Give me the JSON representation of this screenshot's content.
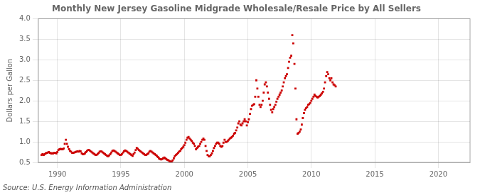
{
  "chart_data": {
    "type": "scatter",
    "title": "Monthly New Jersey Gasoline Midgrade Wholesale/Resale Price by All Sellers",
    "ylabel": "Dollars per Gallon",
    "annotation": "Source: U.S. Energy Information Administration",
    "color": "#cc0000",
    "marker": "square",
    "grid": true,
    "xlim": [
      1988.5,
      2022.5
    ],
    "ylim": [
      0.5,
      4.0
    ],
    "xticks": [
      1990,
      1995,
      2000,
      2005,
      2010,
      2015,
      2020
    ],
    "yticks": [
      0.5,
      {
        "value": 1.0,
        "label": "1.0"
      },
      1.5,
      {
        "value": 2.0,
        "label": "2.0"
      },
      2.5,
      {
        "value": 3.0,
        "label": "3.0"
      },
      3.5,
      {
        "value": 4.0,
        "label": "4.0"
      }
    ],
    "x": [
      1988.75,
      1988.83,
      1988.92,
      1989.0,
      1989.08,
      1989.17,
      1989.25,
      1989.33,
      1989.42,
      1989.5,
      1989.58,
      1989.67,
      1989.75,
      1989.83,
      1989.92,
      1990.0,
      1990.08,
      1990.17,
      1990.25,
      1990.33,
      1990.42,
      1990.5,
      1990.58,
      1990.67,
      1990.75,
      1990.83,
      1990.92,
      1991.0,
      1991.08,
      1991.17,
      1991.25,
      1991.33,
      1991.42,
      1991.5,
      1991.58,
      1991.67,
      1991.75,
      1991.83,
      1991.92,
      1992.0,
      1992.08,
      1992.17,
      1992.25,
      1992.33,
      1992.42,
      1992.5,
      1992.58,
      1992.67,
      1992.75,
      1992.83,
      1992.92,
      1993.0,
      1993.08,
      1993.17,
      1993.25,
      1993.33,
      1993.42,
      1993.5,
      1993.58,
      1993.67,
      1993.75,
      1993.83,
      1993.92,
      1994.0,
      1994.08,
      1994.17,
      1994.25,
      1994.33,
      1994.42,
      1994.5,
      1994.58,
      1994.67,
      1994.75,
      1994.83,
      1994.92,
      1995.0,
      1995.08,
      1995.17,
      1995.25,
      1995.33,
      1995.42,
      1995.5,
      1995.58,
      1995.67,
      1995.75,
      1995.83,
      1995.92,
      1996.0,
      1996.08,
      1996.17,
      1996.25,
      1996.33,
      1996.42,
      1996.5,
      1996.58,
      1996.67,
      1996.75,
      1996.83,
      1996.92,
      1997.0,
      1997.08,
      1997.17,
      1997.25,
      1997.33,
      1997.42,
      1997.5,
      1997.58,
      1997.67,
      1997.75,
      1997.83,
      1997.92,
      1998.0,
      1998.08,
      1998.17,
      1998.25,
      1998.33,
      1998.42,
      1998.5,
      1998.58,
      1998.67,
      1998.75,
      1998.83,
      1998.92,
      1999.0,
      1999.08,
      1999.17,
      1999.25,
      1999.33,
      1999.42,
      1999.5,
      1999.58,
      1999.67,
      1999.75,
      1999.83,
      1999.92,
      2000.0,
      2000.08,
      2000.17,
      2000.25,
      2000.33,
      2000.42,
      2000.5,
      2000.58,
      2000.67,
      2000.75,
      2000.83,
      2000.92,
      2001.0,
      2001.08,
      2001.17,
      2001.25,
      2001.33,
      2001.42,
      2001.5,
      2001.58,
      2001.67,
      2001.75,
      2001.83,
      2001.92,
      2002.0,
      2002.08,
      2002.17,
      2002.25,
      2002.33,
      2002.42,
      2002.5,
      2002.58,
      2002.67,
      2002.75,
      2002.83,
      2002.92,
      2003.0,
      2003.08,
      2003.17,
      2003.25,
      2003.33,
      2003.42,
      2003.5,
      2003.58,
      2003.67,
      2003.75,
      2003.83,
      2003.92,
      2004.0,
      2004.08,
      2004.17,
      2004.25,
      2004.33,
      2004.42,
      2004.5,
      2004.58,
      2004.67,
      2004.75,
      2004.83,
      2004.92,
      2005.0,
      2005.08,
      2005.17,
      2005.25,
      2005.33,
      2005.42,
      2005.5,
      2005.58,
      2005.67,
      2005.75,
      2005.83,
      2005.92,
      2006.0,
      2006.08,
      2006.17,
      2006.25,
      2006.33,
      2006.42,
      2006.5,
      2006.58,
      2006.67,
      2006.75,
      2006.83,
      2006.92,
      2007.0,
      2007.08,
      2007.17,
      2007.25,
      2007.33,
      2007.42,
      2007.5,
      2007.58,
      2007.67,
      2007.75,
      2007.83,
      2007.92,
      2008.0,
      2008.08,
      2008.17,
      2008.25,
      2008.33,
      2008.42,
      2008.5,
      2008.58,
      2008.67,
      2008.75,
      2008.83,
      2008.92,
      2009.0,
      2009.08,
      2009.17,
      2009.25,
      2009.33,
      2009.42,
      2009.5,
      2009.58,
      2009.67,
      2009.75,
      2009.83,
      2009.92,
      2010.0,
      2010.08,
      2010.17,
      2010.25,
      2010.33,
      2010.42,
      2010.5,
      2010.58,
      2010.67,
      2010.75,
      2010.83,
      2010.92,
      2011.0,
      2011.08,
      2011.17,
      2011.25,
      2011.33,
      2011.42,
      2011.5,
      2011.58,
      2011.67,
      2011.75,
      2011.83,
      2011.92
    ],
    "values": [
      0.68,
      0.7,
      0.68,
      0.7,
      0.72,
      0.73,
      0.74,
      0.75,
      0.73,
      0.72,
      0.72,
      0.72,
      0.73,
      0.73,
      0.72,
      0.75,
      0.8,
      0.82,
      0.83,
      0.82,
      0.82,
      0.84,
      0.95,
      1.05,
      0.95,
      0.88,
      0.82,
      0.78,
      0.76,
      0.73,
      0.73,
      0.74,
      0.75,
      0.76,
      0.77,
      0.76,
      0.78,
      0.77,
      0.72,
      0.7,
      0.7,
      0.72,
      0.75,
      0.78,
      0.8,
      0.8,
      0.78,
      0.76,
      0.74,
      0.72,
      0.7,
      0.68,
      0.68,
      0.7,
      0.73,
      0.76,
      0.77,
      0.76,
      0.74,
      0.72,
      0.7,
      0.68,
      0.66,
      0.65,
      0.67,
      0.7,
      0.74,
      0.78,
      0.79,
      0.78,
      0.76,
      0.74,
      0.72,
      0.7,
      0.68,
      0.68,
      0.7,
      0.74,
      0.77,
      0.79,
      0.78,
      0.76,
      0.74,
      0.72,
      0.7,
      0.68,
      0.66,
      0.7,
      0.74,
      0.8,
      0.85,
      0.83,
      0.8,
      0.78,
      0.76,
      0.74,
      0.72,
      0.7,
      0.68,
      0.68,
      0.7,
      0.72,
      0.76,
      0.78,
      0.76,
      0.74,
      0.72,
      0.7,
      0.68,
      0.66,
      0.63,
      0.6,
      0.58,
      0.57,
      0.58,
      0.6,
      0.62,
      0.6,
      0.58,
      0.56,
      0.55,
      0.53,
      0.52,
      0.52,
      0.55,
      0.6,
      0.65,
      0.68,
      0.7,
      0.73,
      0.76,
      0.78,
      0.82,
      0.85,
      0.88,
      0.92,
      0.98,
      1.05,
      1.1,
      1.12,
      1.08,
      1.05,
      1.02,
      0.98,
      0.95,
      0.9,
      0.82,
      0.85,
      0.88,
      0.9,
      0.95,
      1.0,
      1.05,
      1.08,
      1.05,
      0.9,
      0.78,
      0.68,
      0.65,
      0.65,
      0.68,
      0.72,
      0.78,
      0.85,
      0.9,
      0.95,
      0.98,
      0.98,
      0.95,
      0.9,
      0.88,
      0.9,
      0.98,
      1.05,
      1.0,
      1.0,
      1.02,
      1.05,
      1.08,
      1.1,
      1.12,
      1.15,
      1.2,
      1.22,
      1.28,
      1.35,
      1.45,
      1.5,
      1.42,
      1.4,
      1.45,
      1.5,
      1.55,
      1.5,
      1.4,
      1.48,
      1.55,
      1.68,
      1.8,
      1.88,
      1.9,
      1.92,
      2.1,
      2.5,
      2.3,
      2.1,
      1.9,
      1.85,
      1.9,
      2.0,
      2.2,
      2.4,
      2.45,
      2.35,
      2.2,
      2.05,
      1.9,
      1.78,
      1.72,
      1.8,
      1.85,
      1.9,
      1.98,
      2.05,
      2.1,
      2.15,
      2.2,
      2.25,
      2.35,
      2.45,
      2.55,
      2.6,
      2.65,
      2.8,
      2.95,
      3.05,
      3.1,
      3.6,
      3.4,
      2.9,
      2.3,
      1.55,
      1.2,
      1.22,
      1.25,
      1.3,
      1.42,
      1.58,
      1.7,
      1.78,
      1.82,
      1.85,
      1.9,
      1.92,
      1.95,
      2.0,
      2.05,
      2.1,
      2.15,
      2.12,
      2.1,
      2.08,
      2.1,
      2.12,
      2.15,
      2.18,
      2.22,
      2.3,
      2.45,
      2.6,
      2.7,
      2.65,
      2.55,
      2.5,
      2.55,
      2.45,
      2.4,
      2.38,
      2.35
    ]
  }
}
